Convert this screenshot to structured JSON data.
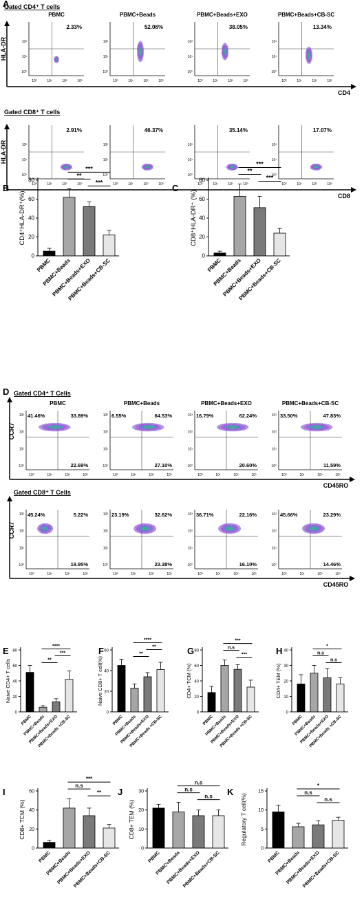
{
  "conditions": [
    "PBMC",
    "PBMC+Beads",
    "PBMC+Beads+EXO",
    "PBMC+Beads+CB-SC"
  ],
  "colors": {
    "PBMC": "#000000",
    "PBMC+Beads": "#a6a6a6",
    "PBMC+Beads+EXO": "#7a7a7a",
    "PBMC+Beads+CB-SC": "#e6e6e6"
  },
  "panel_A": {
    "letter": "A",
    "log_ticks": [
      "10⁰",
      "10¹",
      "10²",
      "10³"
    ],
    "rows": [
      {
        "gate_label": "Gated CD4⁺ T cells",
        "y_axis": "HLA-DR",
        "x_axis": "CD4",
        "plots": [
          {
            "title": "PBMC",
            "percent": "2.33%"
          },
          {
            "title": "PBMC+Beads",
            "percent": "52.06%"
          },
          {
            "title": "PBMC+Beads+EXO",
            "percent": "38.05%"
          },
          {
            "title": "PBMC+Beads+CB-SC",
            "percent": "13.34%"
          }
        ]
      },
      {
        "gate_label": "Gated CD8⁺ T cells",
        "y_axis": "HLA-DR",
        "x_axis": "CD8",
        "plots": [
          {
            "title": "",
            "percent": "2.91%"
          },
          {
            "title": "",
            "percent": "46.37%"
          },
          {
            "title": "",
            "percent": "35.14%"
          },
          {
            "title": "",
            "percent": "17.07%"
          }
        ]
      }
    ]
  },
  "panel_D": {
    "letter": "D",
    "log_ticks": [
      "10⁰",
      "10¹",
      "10²",
      "10³"
    ],
    "rows": [
      {
        "gate_label": "Gated CD4⁺ T Cells",
        "y_axis": "CCR7",
        "x_axis": "CD45RO",
        "plots": [
          {
            "title": "PBMC",
            "q_ul": "41.46%",
            "q_ur": "33.89%",
            "q_lr": "22.69%"
          },
          {
            "title": "PBMC+Beads",
            "q_ul": "6.55%",
            "q_ur": "64.53%",
            "q_lr": "27.10%"
          },
          {
            "title": "PBMC+Beads+EXO",
            "q_ul": "16.79%",
            "q_ur": "62.24%",
            "q_lr": "20.60%"
          },
          {
            "title": "PBMC+Beads+CB-SC",
            "q_ul": "33.50%",
            "q_ur": "47.83%",
            "q_lr": "11.59%"
          }
        ]
      },
      {
        "gate_label": "Gated CD8⁺ T Cells",
        "y_axis": "CCR7",
        "x_axis": "CD45RO",
        "plots": [
          {
            "title": "",
            "q_ul": "45.24%",
            "q_ur": "5.22%",
            "q_lr": "19.95%"
          },
          {
            "title": "",
            "q_ul": "23.19%",
            "q_ur": "32.62%",
            "q_lr": "23.38%"
          },
          {
            "title": "",
            "q_ul": "36.71%",
            "q_ur": "22.16%",
            "q_lr": "16.10%"
          },
          {
            "title": "",
            "q_ul": "45.66%",
            "q_ur": "23.29%",
            "q_lr": "14.46%"
          }
        ]
      }
    ]
  },
  "chart_data": [
    {
      "panel": "B",
      "type": "bar",
      "ylabel": "CD4⁺HLA-DR⁺(%)",
      "ylim": [
        0,
        80
      ],
      "yticks": [
        0,
        20,
        40,
        60,
        80
      ],
      "categories": [
        "PBMC",
        "PBMC+Beads",
        "PBMC+Beads+EXO",
        "PBMC+Beads+CB-SC"
      ],
      "values": [
        5,
        62,
        52,
        22
      ],
      "errors": [
        3,
        9,
        5,
        5
      ],
      "significance": [
        {
          "from": 1,
          "to": 3,
          "label": "***"
        },
        {
          "from": 1,
          "to": 2,
          "label": "**"
        },
        {
          "from": 2,
          "to": 3,
          "label": "***"
        }
      ]
    },
    {
      "panel": "C",
      "type": "bar",
      "ylabel": "CD8⁺HLA-DR⁺ (%)",
      "ylim": [
        0,
        80
      ],
      "yticks": [
        0,
        20,
        40,
        60,
        80
      ],
      "categories": [
        "PBMC",
        "PBMC+Beads",
        "PBMC+Beads+EXO",
        "PBMC+Beads+CB-SC"
      ],
      "values": [
        3,
        63,
        51,
        24
      ],
      "errors": [
        2,
        13,
        12,
        5
      ],
      "significance": [
        {
          "from": 1,
          "to": 3,
          "label": "***"
        },
        {
          "from": 1,
          "to": 2,
          "label": "**"
        },
        {
          "from": 2,
          "to": 3,
          "label": "***"
        }
      ]
    },
    {
      "panel": "E",
      "type": "bar",
      "ylabel": "Naive CD4+ T cells",
      "ylim": [
        0,
        80
      ],
      "yticks": [
        0,
        20,
        40,
        60,
        80
      ],
      "categories": [
        "PBMC",
        "PBMC+Beads",
        "PBMC+Beads+EXO",
        "PBMC+Beads +CB-SC"
      ],
      "values": [
        51,
        6,
        13,
        42
      ],
      "errors": [
        9,
        2,
        4,
        11
      ],
      "significance": [
        {
          "from": 1,
          "to": 3,
          "label": "****"
        },
        {
          "from": 2,
          "to": 3,
          "label": "***"
        },
        {
          "from": 1,
          "to": 2,
          "label": "**"
        }
      ]
    },
    {
      "panel": "F",
      "type": "bar",
      "ylabel": "Naive CD8+ T cell(%)",
      "ylim": [
        0,
        60
      ],
      "yticks": [
        0,
        20,
        40,
        60
      ],
      "categories": [
        "PBMC",
        "PBMC+Beads",
        "PBMC+Beads+EXO",
        "PBMC+Beads +CB-SC"
      ],
      "values": [
        45,
        23,
        34,
        41
      ],
      "errors": [
        6,
        4,
        4,
        7
      ],
      "significance": [
        {
          "from": 1,
          "to": 3,
          "label": "****"
        },
        {
          "from": 2,
          "to": 3,
          "label": "**"
        },
        {
          "from": 1,
          "to": 2,
          "label": "**"
        }
      ]
    },
    {
      "panel": "G",
      "type": "bar",
      "ylabel": "CD4+ TCM (%)",
      "ylim": [
        0,
        80
      ],
      "yticks": [
        0,
        20,
        40,
        60,
        80
      ],
      "categories": [
        "PBMC",
        "PBMC+Beads",
        "PBMC+Beads+EXO",
        "PBMC+Beads +CB-SC"
      ],
      "values": [
        25,
        60,
        55,
        32
      ],
      "errors": [
        8,
        7,
        6,
        9
      ],
      "significance": [
        {
          "from": 1,
          "to": 3,
          "label": "***"
        },
        {
          "from": 1,
          "to": 2,
          "label": "n.s"
        },
        {
          "from": 2,
          "to": 3,
          "label": "***"
        }
      ]
    },
    {
      "panel": "H",
      "type": "bar",
      "ylabel": "CD4+ TEM (%)",
      "ylim": [
        0,
        40
      ],
      "yticks": [
        0,
        10,
        20,
        30,
        40
      ],
      "categories": [
        "PBMC",
        "PBMC+Beads",
        "PBMC+Beads+EXO",
        "PBMC+Beads +CB-SC"
      ],
      "values": [
        18,
        25,
        22,
        18
      ],
      "errors": [
        6,
        5,
        6,
        4
      ],
      "significance": [
        {
          "from": 1,
          "to": 3,
          "label": "*"
        },
        {
          "from": 1,
          "to": 2,
          "label": "n.s"
        },
        {
          "from": 2,
          "to": 3,
          "label": "n.s"
        }
      ]
    },
    {
      "panel": "I",
      "type": "bar",
      "ylabel": "CD8+ TCM (%)",
      "ylim": [
        0,
        60
      ],
      "yticks": [
        0,
        20,
        40,
        60
      ],
      "categories": [
        "PBMC",
        "PBMC+Beads",
        "PBMC+Beads+EXO",
        "PBMC+Beads+CB-SC"
      ],
      "values": [
        6,
        42,
        34,
        21
      ],
      "errors": [
        2,
        10,
        8,
        4
      ],
      "significance": [
        {
          "from": 1,
          "to": 3,
          "label": "***"
        },
        {
          "from": 1,
          "to": 2,
          "label": "n.s"
        },
        {
          "from": 2,
          "to": 3,
          "label": "**"
        }
      ]
    },
    {
      "panel": "J",
      "type": "bar",
      "ylabel": "CD8+ TEM (%)",
      "ylim": [
        0,
        30
      ],
      "yticks": [
        0,
        10,
        20,
        30
      ],
      "categories": [
        "PBMC",
        "PBMC+Beads",
        "PBMC+Beads+EXO",
        "PBMC+Beads+CB-SC"
      ],
      "values": [
        21,
        19,
        17,
        17
      ],
      "errors": [
        2,
        5,
        3,
        3
      ],
      "significance": [
        {
          "from": 1,
          "to": 3,
          "label": "n.s"
        },
        {
          "from": 1,
          "to": 2,
          "label": "n.s"
        },
        {
          "from": 2,
          "to": 3,
          "label": "n.s"
        }
      ]
    },
    {
      "panel": "K",
      "type": "bar",
      "ylabel": "Regulatory T cell(%)",
      "ylim": [
        0,
        15
      ],
      "yticks": [
        0,
        5,
        10,
        15
      ],
      "categories": [
        "PBMC",
        "PBMC+Beads",
        "PBMC+Beads+EXO",
        "PBMC+Beads+CB-SC"
      ],
      "values": [
        9.5,
        5.6,
        6.1,
        7.3
      ],
      "errors": [
        1.7,
        0.9,
        1.1,
        0.8
      ],
      "significance": [
        {
          "from": 1,
          "to": 3,
          "label": "*"
        },
        {
          "from": 1,
          "to": 2,
          "label": "n.s"
        },
        {
          "from": 2,
          "to": 3,
          "label": "n.s"
        }
      ]
    }
  ]
}
